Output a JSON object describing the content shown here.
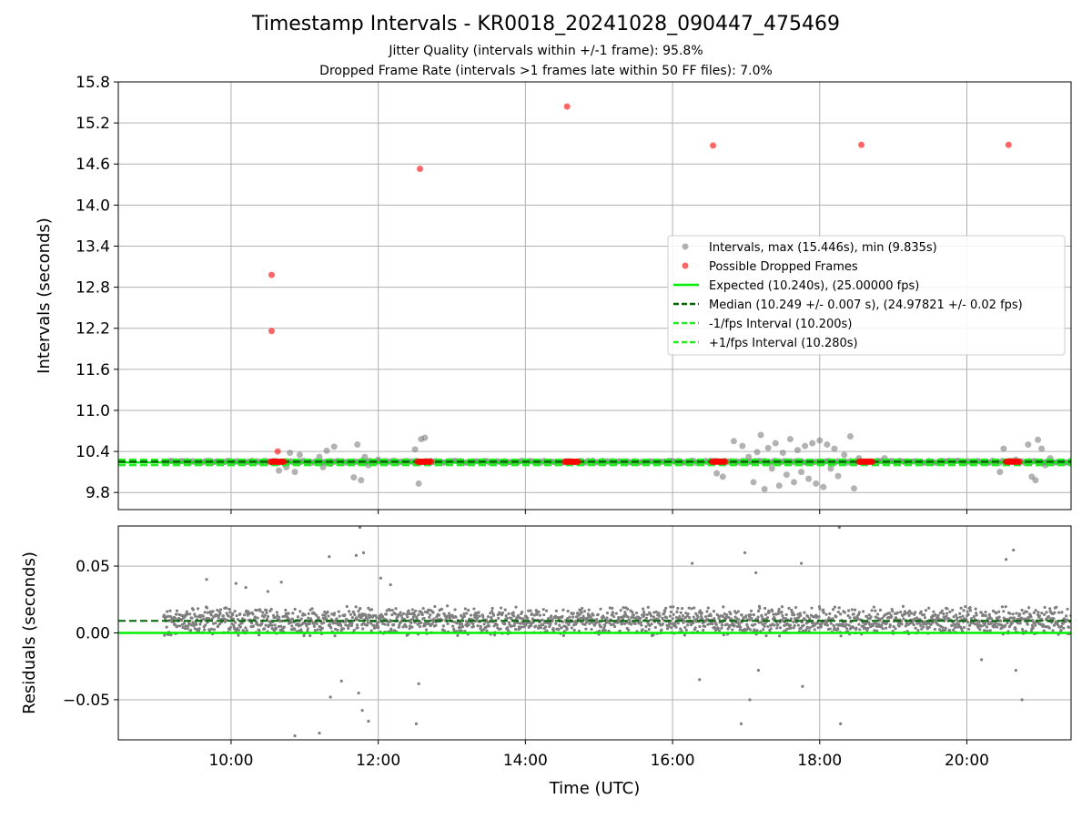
{
  "title": "Timestamp Intervals - KR0018_20241028_090447_475469",
  "subtitle_1": "Jitter Quality (intervals within +/-1 frame): 95.8%",
  "subtitle_2": "Dropped Frame Rate (intervals >1 frames late within 50 FF files): 7.0%",
  "colors": {
    "interval": "#7f7f7f",
    "dropped": "#ff0000",
    "expected": "#00ee00",
    "median": "#006400",
    "fps_bound": "#22ee22",
    "grid": "#b0b0b0"
  },
  "chart_data": [
    {
      "type": "scatter",
      "name": "intervals",
      "ylabel": "Intervals (seconds)",
      "xlim": [
        "08:28",
        "21:25"
      ],
      "ylim": [
        9.55,
        15.8
      ],
      "yticks": [
        "9.8",
        "10.4",
        "11.0",
        "11.6",
        "12.2",
        "12.8",
        "13.4",
        "14.0",
        "14.6",
        "15.2",
        "15.8"
      ],
      "grid": true,
      "legend_position": "center-right",
      "legend": {
        "intervals": "Intervals, max (15.446s), min (9.835s)",
        "dropped": "Possible Dropped Frames",
        "expected": "Expected (10.240s), (25.00000 fps)",
        "median": "Median (10.249 +/- 0.007 s), (24.97821 +/- 0.02 fps)",
        "minus_fps": "-1/fps Interval (10.200s)",
        "plus_fps": "+1/fps Interval (10.280s)"
      },
      "lines": {
        "expected": 10.24,
        "median": 10.249,
        "minus_fps": 10.2,
        "plus_fps": 10.28
      },
      "dropped_points": [
        {
          "x": "10:33",
          "y": 12.98
        },
        {
          "x": "10:33",
          "y": 12.16
        },
        {
          "x": "10:38",
          "y": 10.4
        },
        {
          "x": "12:34",
          "y": 14.53
        },
        {
          "x": "14:34",
          "y": 15.44
        },
        {
          "x": "16:33",
          "y": 14.87
        },
        {
          "x": "18:34",
          "y": 14.88
        },
        {
          "x": "20:34",
          "y": 14.88
        }
      ],
      "dropped_clusters": [
        {
          "x_start": "10:32",
          "x_end": "10:43",
          "y": 10.25
        },
        {
          "x_start": "12:32",
          "x_end": "12:43",
          "y": 10.25
        },
        {
          "x_start": "14:32",
          "x_end": "14:43",
          "y": 10.25
        },
        {
          "x_start": "16:32",
          "x_end": "16:43",
          "y": 10.25
        },
        {
          "x_start": "18:32",
          "x_end": "18:43",
          "y": 10.25
        },
        {
          "x_start": "20:32",
          "x_end": "20:43",
          "y": 10.25
        }
      ],
      "interval_points": [
        {
          "x": "10:39",
          "y": 10.12
        },
        {
          "x": "10:45",
          "y": 10.17
        },
        {
          "x": "10:48",
          "y": 10.38
        },
        {
          "x": "10:52",
          "y": 10.1
        },
        {
          "x": "10:56",
          "y": 10.35
        },
        {
          "x": "11:12",
          "y": 10.32
        },
        {
          "x": "11:15",
          "y": 10.17
        },
        {
          "x": "11:18",
          "y": 10.41
        },
        {
          "x": "11:21",
          "y": 10.22
        },
        {
          "x": "11:24",
          "y": 10.47
        },
        {
          "x": "11:37",
          "y": 10.23
        },
        {
          "x": "11:40",
          "y": 10.02
        },
        {
          "x": "11:43",
          "y": 10.5
        },
        {
          "x": "11:46",
          "y": 9.98
        },
        {
          "x": "11:49",
          "y": 10.32
        },
        {
          "x": "11:52",
          "y": 10.2
        },
        {
          "x": "12:00",
          "y": 10.28
        },
        {
          "x": "12:30",
          "y": 10.43
        },
        {
          "x": "12:35",
          "y": 10.58
        },
        {
          "x": "12:38",
          "y": 10.6
        },
        {
          "x": "12:33",
          "y": 9.93
        },
        {
          "x": "16:36",
          "y": 10.08
        },
        {
          "x": "16:41",
          "y": 10.03
        },
        {
          "x": "16:50",
          "y": 10.55
        },
        {
          "x": "16:57",
          "y": 10.48
        },
        {
          "x": "17:02",
          "y": 10.32
        },
        {
          "x": "17:06",
          "y": 9.95
        },
        {
          "x": "17:09",
          "y": 10.39
        },
        {
          "x": "17:12",
          "y": 10.64
        },
        {
          "x": "17:15",
          "y": 9.85
        },
        {
          "x": "17:18",
          "y": 10.45
        },
        {
          "x": "17:21",
          "y": 10.15
        },
        {
          "x": "17:24",
          "y": 10.52
        },
        {
          "x": "17:27",
          "y": 9.9
        },
        {
          "x": "17:30",
          "y": 10.38
        },
        {
          "x": "17:33",
          "y": 10.06
        },
        {
          "x": "17:36",
          "y": 10.58
        },
        {
          "x": "17:39",
          "y": 9.95
        },
        {
          "x": "17:42",
          "y": 10.42
        },
        {
          "x": "17:45",
          "y": 10.1
        },
        {
          "x": "17:48",
          "y": 10.48
        },
        {
          "x": "17:51",
          "y": 10.0
        },
        {
          "x": "17:54",
          "y": 10.52
        },
        {
          "x": "17:57",
          "y": 9.93
        },
        {
          "x": "18:00",
          "y": 10.56
        },
        {
          "x": "18:03",
          "y": 9.88
        },
        {
          "x": "18:06",
          "y": 10.5
        },
        {
          "x": "18:09",
          "y": 10.15
        },
        {
          "x": "18:12",
          "y": 10.44
        },
        {
          "x": "18:15",
          "y": 10.04
        },
        {
          "x": "18:20",
          "y": 10.35
        },
        {
          "x": "18:25",
          "y": 10.62
        },
        {
          "x": "18:28",
          "y": 9.86
        },
        {
          "x": "18:32",
          "y": 10.3
        },
        {
          "x": "18:53",
          "y": 10.3
        },
        {
          "x": "19:10",
          "y": 10.25
        },
        {
          "x": "20:30",
          "y": 10.44
        },
        {
          "x": "20:27",
          "y": 10.1
        },
        {
          "x": "20:40",
          "y": 10.28
        },
        {
          "x": "20:50",
          "y": 10.5
        },
        {
          "x": "20:53",
          "y": 10.03
        },
        {
          "x": "20:56",
          "y": 9.98
        },
        {
          "x": "20:58",
          "y": 10.57
        },
        {
          "x": "21:01",
          "y": 10.44
        },
        {
          "x": "21:04",
          "y": 10.2
        },
        {
          "x": "21:08",
          "y": 10.3
        }
      ]
    },
    {
      "type": "scatter",
      "name": "residuals",
      "xlabel": "Time (UTC)",
      "ylabel": "Residuals (seconds)",
      "xlim": [
        "08:28",
        "21:25"
      ],
      "ylim": [
        -0.08,
        0.08
      ],
      "yticks": [
        "0.05",
        "0.00",
        "−0.05"
      ],
      "xticks": [
        "10:00",
        "12:00",
        "14:00",
        "16:00",
        "18:00",
        "20:00"
      ],
      "grid": true,
      "lines": {
        "median": 0.009,
        "expected": 0.0
      },
      "outliers": [
        {
          "x": "09:40",
          "y": 0.04
        },
        {
          "x": "10:04",
          "y": 0.037
        },
        {
          "x": "10:12",
          "y": 0.034
        },
        {
          "x": "10:30",
          "y": 0.031
        },
        {
          "x": "10:41",
          "y": 0.038
        },
        {
          "x": "10:52",
          "y": -0.077
        },
        {
          "x": "11:12",
          "y": -0.075
        },
        {
          "x": "11:20",
          "y": 0.057
        },
        {
          "x": "11:21",
          "y": -0.048
        },
        {
          "x": "11:30",
          "y": -0.036
        },
        {
          "x": "11:42",
          "y": 0.058
        },
        {
          "x": "11:48",
          "y": 0.06
        },
        {
          "x": "11:44",
          "y": -0.045
        },
        {
          "x": "11:47",
          "y": -0.058
        },
        {
          "x": "11:52",
          "y": -0.066
        },
        {
          "x": "11:45",
          "y": 0.079
        },
        {
          "x": "12:02",
          "y": 0.041
        },
        {
          "x": "12:10",
          "y": 0.036
        },
        {
          "x": "12:31",
          "y": -0.068
        },
        {
          "x": "12:33",
          "y": -0.038
        },
        {
          "x": "16:16",
          "y": 0.052
        },
        {
          "x": "16:22",
          "y": -0.035
        },
        {
          "x": "16:56",
          "y": -0.068
        },
        {
          "x": "16:59",
          "y": 0.06
        },
        {
          "x": "17:03",
          "y": -0.05
        },
        {
          "x": "17:08",
          "y": 0.045
        },
        {
          "x": "17:10",
          "y": -0.028
        },
        {
          "x": "17:45",
          "y": 0.052
        },
        {
          "x": "17:46",
          "y": -0.04
        },
        {
          "x": "18:16",
          "y": 0.079
        },
        {
          "x": "18:17",
          "y": -0.068
        },
        {
          "x": "20:12",
          "y": -0.02
        },
        {
          "x": "20:32",
          "y": 0.055
        },
        {
          "x": "20:38",
          "y": 0.062
        },
        {
          "x": "20:40",
          "y": -0.028
        },
        {
          "x": "20:45",
          "y": -0.05
        }
      ]
    }
  ]
}
